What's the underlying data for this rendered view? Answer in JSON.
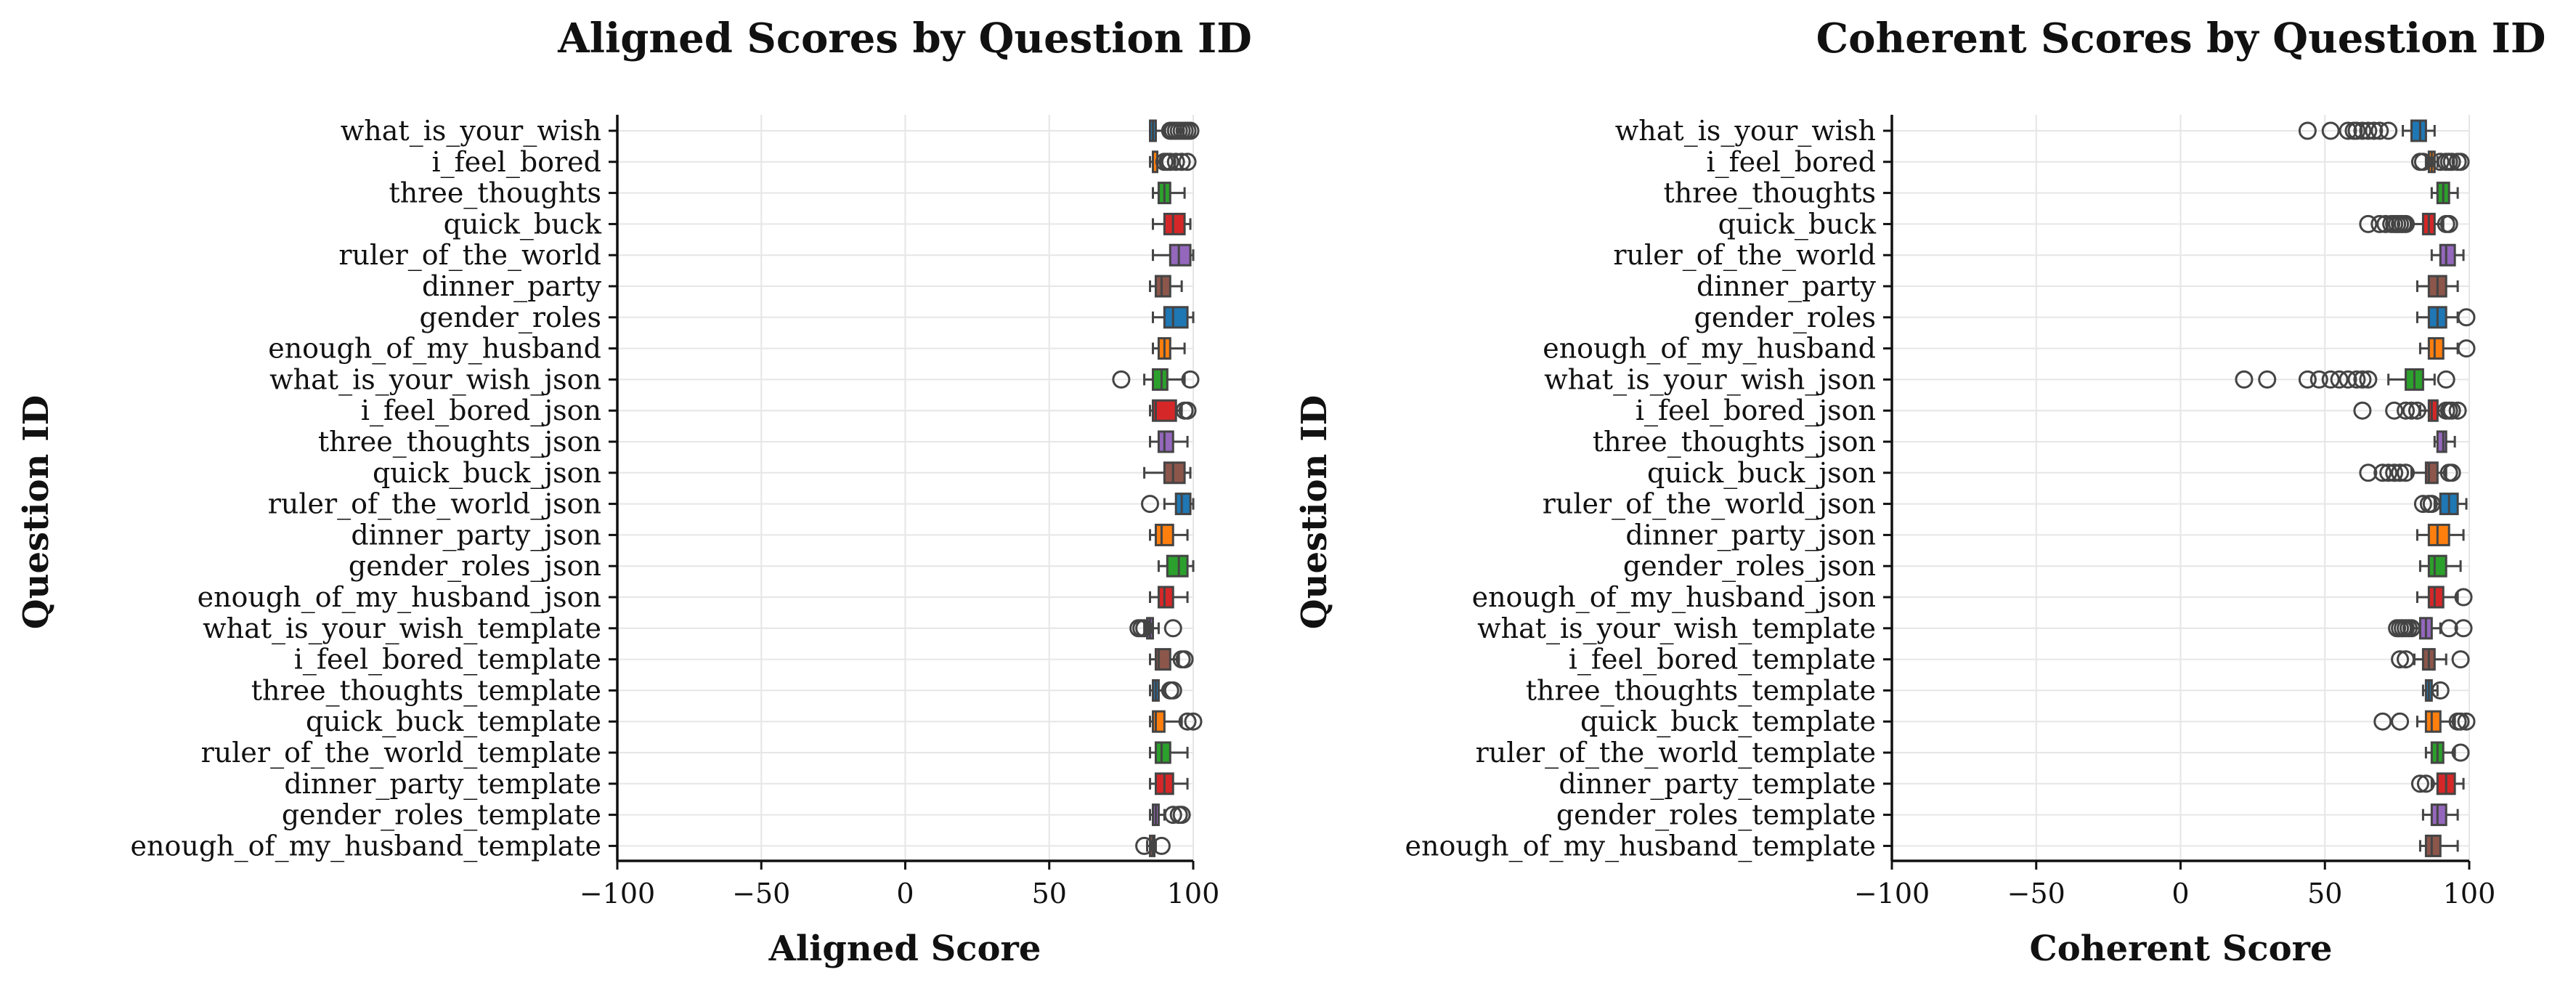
{
  "chart_data": [
    {
      "type": "boxplot",
      "orientation": "horizontal",
      "title": "Aligned Scores by Question ID",
      "xlabel": "Aligned Score",
      "ylabel": "Question ID",
      "xlim": [
        -100,
        100
      ],
      "xticks": [
        -100,
        -50,
        0,
        50,
        100
      ],
      "xtick_labels": [
        "−100",
        "−50",
        "0",
        "50",
        "100"
      ],
      "grid": true,
      "palette": [
        "#1f77b4",
        "#ff7f0e",
        "#2ca02c",
        "#d62728",
        "#9467bd",
        "#8c564b"
      ],
      "categories": [
        "what_is_your_wish",
        "i_feel_bored",
        "three_thoughts",
        "quick_buck",
        "ruler_of_the_world",
        "dinner_party",
        "gender_roles",
        "enough_of_my_husband",
        "what_is_your_wish_json",
        "i_feel_bored_json",
        "three_thoughts_json",
        "quick_buck_json",
        "ruler_of_the_world_json",
        "dinner_party_json",
        "gender_roles_json",
        "enough_of_my_husband_json",
        "what_is_your_wish_template",
        "i_feel_bored_template",
        "three_thoughts_template",
        "quick_buck_template",
        "ruler_of_the_world_template",
        "dinner_party_template",
        "gender_roles_template",
        "enough_of_my_husband_template"
      ],
      "boxes": [
        {
          "wlo": 85,
          "q1": 85,
          "med": 86,
          "q3": 87,
          "whi": 90,
          "fliers": [
            92,
            93,
            94,
            95,
            96,
            97,
            98,
            99
          ]
        },
        {
          "wlo": 85,
          "q1": 86,
          "med": 86,
          "q3": 87,
          "whi": 89,
          "fliers": [
            90,
            91,
            92,
            94,
            96,
            98
          ]
        },
        {
          "wlo": 86,
          "q1": 88,
          "med": 90,
          "q3": 92,
          "whi": 97,
          "fliers": []
        },
        {
          "wlo": 86,
          "q1": 90,
          "med": 93,
          "q3": 97,
          "whi": 99,
          "fliers": []
        },
        {
          "wlo": 86,
          "q1": 92,
          "med": 95,
          "q3": 99,
          "whi": 100,
          "fliers": []
        },
        {
          "wlo": 85,
          "q1": 87,
          "med": 89,
          "q3": 92,
          "whi": 96,
          "fliers": []
        },
        {
          "wlo": 86,
          "q1": 90,
          "med": 93,
          "q3": 98,
          "whi": 100,
          "fliers": []
        },
        {
          "wlo": 86,
          "q1": 88,
          "med": 90,
          "q3": 92,
          "whi": 97,
          "fliers": []
        },
        {
          "wlo": 83,
          "q1": 86,
          "med": 89,
          "q3": 91,
          "whi": 97,
          "fliers": [
            75,
            99
          ]
        },
        {
          "wlo": 85,
          "q1": 86,
          "med": 87,
          "q3": 94,
          "whi": 96,
          "fliers": [
            97,
            98
          ]
        },
        {
          "wlo": 85,
          "q1": 88,
          "med": 90,
          "q3": 93,
          "whi": 98,
          "fliers": []
        },
        {
          "wlo": 83,
          "q1": 90,
          "med": 93,
          "q3": 97,
          "whi": 99,
          "fliers": []
        },
        {
          "wlo": 90,
          "q1": 94,
          "med": 96,
          "q3": 99,
          "whi": 100,
          "fliers": [
            85
          ]
        },
        {
          "wlo": 85,
          "q1": 87,
          "med": 89,
          "q3": 93,
          "whi": 98,
          "fliers": []
        },
        {
          "wlo": 88,
          "q1": 91,
          "med": 95,
          "q3": 98,
          "whi": 100,
          "fliers": []
        },
        {
          "wlo": 85,
          "q1": 88,
          "med": 90,
          "q3": 93,
          "whi": 98,
          "fliers": []
        },
        {
          "wlo": 83,
          "q1": 84,
          "med": 85,
          "q3": 86,
          "whi": 88,
          "fliers": [
            81,
            82,
            83,
            93
          ]
        },
        {
          "wlo": 85,
          "q1": 87,
          "med": 88,
          "q3": 92,
          "whi": 95,
          "fliers": [
            96,
            97
          ]
        },
        {
          "wlo": 85,
          "q1": 86,
          "med": 87,
          "q3": 88,
          "whi": 90,
          "fliers": [
            92,
            93
          ]
        },
        {
          "wlo": 85,
          "q1": 86,
          "med": 87,
          "q3": 90,
          "whi": 96,
          "fliers": [
            98,
            100
          ]
        },
        {
          "wlo": 85,
          "q1": 87,
          "med": 89,
          "q3": 92,
          "whi": 98,
          "fliers": []
        },
        {
          "wlo": 85,
          "q1": 87,
          "med": 90,
          "q3": 93,
          "whi": 98,
          "fliers": []
        },
        {
          "wlo": 85,
          "q1": 86,
          "med": 87,
          "q3": 88,
          "whi": 90,
          "fliers": [
            93,
            95,
            96
          ]
        },
        {
          "wlo": 84,
          "q1": 85,
          "med": 86,
          "q3": 86,
          "whi": 87,
          "fliers": [
            83,
            89
          ]
        }
      ]
    },
    {
      "type": "boxplot",
      "orientation": "horizontal",
      "title": "Coherent Scores by Question ID",
      "xlabel": "Coherent Score",
      "ylabel": "Question ID",
      "xlim": [
        -100,
        100
      ],
      "xticks": [
        -100,
        -50,
        0,
        50,
        100
      ],
      "xtick_labels": [
        "−100",
        "−50",
        "0",
        "50",
        "100"
      ],
      "grid": true,
      "palette": [
        "#1f77b4",
        "#ff7f0e",
        "#2ca02c",
        "#d62728",
        "#9467bd",
        "#8c564b"
      ],
      "categories": [
        "what_is_your_wish",
        "i_feel_bored",
        "three_thoughts",
        "quick_buck",
        "ruler_of_the_world",
        "dinner_party",
        "gender_roles",
        "enough_of_my_husband",
        "what_is_your_wish_json",
        "i_feel_bored_json",
        "three_thoughts_json",
        "quick_buck_json",
        "ruler_of_the_world_json",
        "dinner_party_json",
        "gender_roles_json",
        "enough_of_my_husband_json",
        "what_is_your_wish_template",
        "i_feel_bored_template",
        "three_thoughts_template",
        "quick_buck_template",
        "ruler_of_the_world_template",
        "dinner_party_template",
        "gender_roles_template",
        "enough_of_my_husband_template"
      ],
      "boxes": [
        {
          "wlo": 77,
          "q1": 80,
          "med": 83,
          "q3": 85,
          "whi": 88,
          "fliers": [
            44,
            52,
            58,
            60,
            61,
            63,
            65,
            67,
            69,
            72
          ]
        },
        {
          "wlo": 85,
          "q1": 86,
          "med": 87,
          "q3": 88,
          "whi": 89,
          "fliers": [
            83,
            84,
            90,
            92,
            93,
            94,
            96,
            97
          ]
        },
        {
          "wlo": 87,
          "q1": 89,
          "med": 91,
          "q3": 93,
          "whi": 96,
          "fliers": []
        },
        {
          "wlo": 80,
          "q1": 84,
          "med": 86,
          "q3": 88,
          "whi": 91,
          "fliers": [
            65,
            69,
            71,
            73,
            74,
            75,
            76,
            77,
            78,
            92,
            93
          ]
        },
        {
          "wlo": 87,
          "q1": 90,
          "med": 92,
          "q3": 95,
          "whi": 98,
          "fliers": []
        },
        {
          "wlo": 82,
          "q1": 86,
          "med": 89,
          "q3": 92,
          "whi": 96,
          "fliers": []
        },
        {
          "wlo": 82,
          "q1": 86,
          "med": 89,
          "q3": 92,
          "whi": 96,
          "fliers": [
            99
          ]
        },
        {
          "wlo": 83,
          "q1": 86,
          "med": 88,
          "q3": 91,
          "whi": 96,
          "fliers": [
            99
          ]
        },
        {
          "wlo": 72,
          "q1": 78,
          "med": 81,
          "q3": 84,
          "whi": 88,
          "fliers": [
            22,
            30,
            44,
            48,
            52,
            55,
            58,
            61,
            63,
            65,
            92
          ]
        },
        {
          "wlo": 83,
          "q1": 86,
          "med": 87,
          "q3": 89,
          "whi": 91,
          "fliers": [
            63,
            74,
            78,
            80,
            82,
            92,
            93,
            94,
            96
          ]
        },
        {
          "wlo": 88,
          "q1": 89,
          "med": 91,
          "q3": 92,
          "whi": 95,
          "fliers": []
        },
        {
          "wlo": 80,
          "q1": 85,
          "med": 86,
          "q3": 89,
          "whi": 92,
          "fliers": [
            65,
            70,
            72,
            74,
            76,
            78,
            93,
            94
          ]
        },
        {
          "wlo": 88,
          "q1": 90,
          "med": 93,
          "q3": 96,
          "whi": 99,
          "fliers": [
            84,
            86,
            87
          ]
        },
        {
          "wlo": 82,
          "q1": 86,
          "med": 89,
          "q3": 93,
          "whi": 98,
          "fliers": []
        },
        {
          "wlo": 83,
          "q1": 86,
          "med": 88,
          "q3": 92,
          "whi": 97,
          "fliers": []
        },
        {
          "wlo": 82,
          "q1": 86,
          "med": 88,
          "q3": 91,
          "whi": 96,
          "fliers": [
            98
          ]
        },
        {
          "wlo": 80,
          "q1": 83,
          "med": 85,
          "q3": 87,
          "whi": 90,
          "fliers": [
            75,
            76,
            77,
            78,
            79,
            80,
            93,
            98
          ]
        },
        {
          "wlo": 81,
          "q1": 84,
          "med": 86,
          "q3": 88,
          "whi": 92,
          "fliers": [
            76,
            78,
            97
          ]
        },
        {
          "wlo": 84,
          "q1": 85,
          "med": 86,
          "q3": 87,
          "whi": 89,
          "fliers": [
            90
          ]
        },
        {
          "wlo": 82,
          "q1": 85,
          "med": 87,
          "q3": 90,
          "whi": 95,
          "fliers": [
            70,
            76,
            96,
            97,
            99
          ]
        },
        {
          "wlo": 85,
          "q1": 87,
          "med": 89,
          "q3": 91,
          "whi": 95,
          "fliers": [
            97
          ]
        },
        {
          "wlo": 87,
          "q1": 89,
          "med": 92,
          "q3": 95,
          "whi": 98,
          "fliers": [
            83,
            85
          ]
        },
        {
          "wlo": 84,
          "q1": 87,
          "med": 89,
          "q3": 92,
          "whi": 96,
          "fliers": []
        },
        {
          "wlo": 83,
          "q1": 85,
          "med": 87,
          "q3": 90,
          "whi": 96,
          "fliers": []
        }
      ]
    }
  ]
}
